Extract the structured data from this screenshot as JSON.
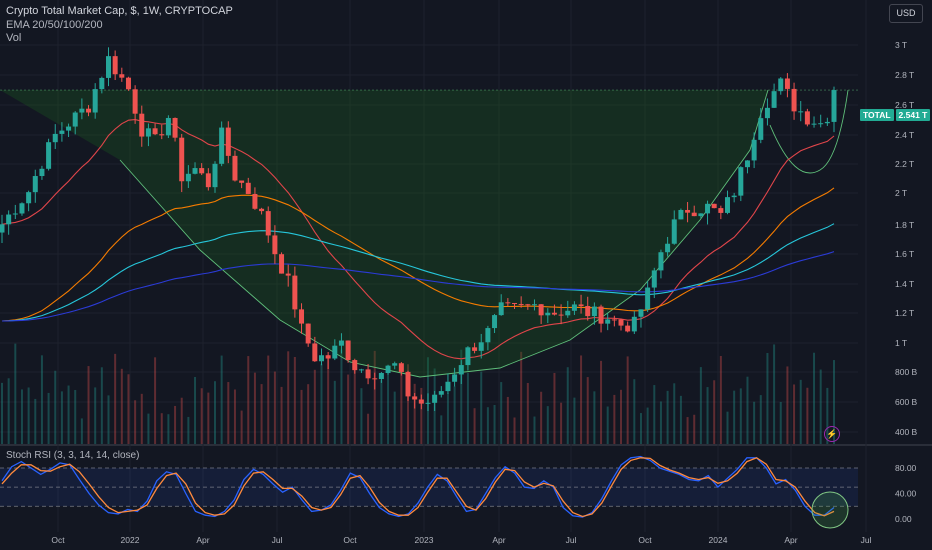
{
  "header": {
    "title": "Crypto Total Market Cap, $, 1W, CRYPTOCAP",
    "indicator": "EMA 20/50/100/200",
    "volume_label": "Vol",
    "currency": "USD"
  },
  "price_tag": {
    "symbol": "TOTAL",
    "value": "2.541 T"
  },
  "oscillator": {
    "label": "Stoch RSI (3, 3, 14, 14, close)"
  },
  "colors": {
    "up": "#26a69a",
    "down": "#ef5350",
    "ema20": "#e0454a",
    "ema50": "#f57c00",
    "ema100": "#26c6da",
    "ema200": "#2b3bd6",
    "cup": "#5fbf7a",
    "k": "#2962ff",
    "d": "#ff8a3d",
    "background": "#131722"
  },
  "chart_data": [
    {
      "type": "candlestick",
      "title": "Crypto Total Market Cap, $, 1W, CRYPTOCAP",
      "y_scale": "log",
      "y_ticks": [
        "3 T",
        "2.8 T",
        "2.6 T",
        "2.4 T",
        "2.2 T",
        "2 T",
        "1.8 T",
        "1.6 T",
        "1.4 T",
        "1.2 T",
        "1 T",
        "800 B",
        "600 B",
        "400 B"
      ],
      "x_ticks": [
        "Oct",
        "2022",
        "Apr",
        "Jul",
        "Oct",
        "2023",
        "Apr",
        "Jul",
        "Oct",
        "2024",
        "Apr",
        "Jul"
      ],
      "last_value": "2.541 T",
      "close_path_trillions": [
        [
          0,
          1.55
        ],
        [
          4,
          1.75
        ],
        [
          8,
          2.15
        ],
        [
          13,
          2.4
        ],
        [
          16,
          2.85
        ],
        [
          19,
          2.55
        ],
        [
          21,
          2.2
        ],
        [
          23,
          2.1
        ],
        [
          25,
          2.3
        ],
        [
          27,
          1.85
        ],
        [
          29,
          1.9
        ],
        [
          31,
          1.8
        ],
        [
          33,
          2.15
        ],
        [
          35,
          1.85
        ],
        [
          37,
          1.75
        ],
        [
          39,
          1.6
        ],
        [
          41,
          1.4
        ],
        [
          43,
          1.25
        ],
        [
          45,
          1.05
        ],
        [
          47,
          0.95
        ],
        [
          49,
          0.95
        ],
        [
          51,
          1.0
        ],
        [
          53,
          0.92
        ],
        [
          55,
          0.9
        ],
        [
          57,
          0.9
        ],
        [
          59,
          0.92
        ],
        [
          61,
          0.83
        ],
        [
          63,
          0.8
        ],
        [
          65,
          0.81
        ],
        [
          67,
          0.87
        ],
        [
          70,
          0.97
        ],
        [
          73,
          1.04
        ],
        [
          75,
          1.13
        ],
        [
          77,
          1.13
        ],
        [
          80,
          1.15
        ],
        [
          83,
          1.12
        ],
        [
          86,
          1.14
        ],
        [
          88,
          1.12
        ],
        [
          91,
          1.1
        ],
        [
          93,
          1.07
        ],
        [
          95,
          1.07
        ],
        [
          97,
          1.2
        ],
        [
          99,
          1.4
        ],
        [
          101,
          1.55
        ],
        [
          103,
          1.64
        ],
        [
          106,
          1.65
        ],
        [
          108,
          1.6
        ],
        [
          110,
          1.75
        ],
        [
          112,
          2.0
        ],
        [
          114,
          2.35
        ],
        [
          115,
          2.45
        ],
        [
          117,
          2.6
        ],
        [
          119,
          2.4
        ],
        [
          121,
          2.3
        ],
        [
          123,
          2.25
        ],
        [
          124,
          2.32
        ],
        [
          125,
          2.541
        ]
      ],
      "ema_series": [
        "EMA 20",
        "EMA 50",
        "EMA 100",
        "EMA 200"
      ]
    },
    {
      "type": "line",
      "title": "Stoch RSI (3, 3, 14, 14, close)",
      "y_ticks": [
        "80.00",
        "40.00",
        "0.00"
      ],
      "ylim": [
        0,
        100
      ],
      "series": [
        {
          "name": "K",
          "values": [
            60,
            82,
            90,
            80,
            70,
            78,
            88,
            85,
            62,
            40,
            22,
            10,
            8,
            15,
            12,
            28,
            60,
            74,
            70,
            40,
            12,
            6,
            4,
            12,
            30,
            62,
            78,
            70,
            55,
            42,
            50,
            30,
            12,
            14,
            22,
            45,
            72,
            65,
            40,
            18,
            8,
            4,
            8,
            25,
            50,
            70,
            60,
            35,
            12,
            15,
            40,
            65,
            82,
            72,
            50,
            48,
            60,
            50,
            18,
            5,
            3,
            10,
            32,
            60,
            85,
            96,
            98,
            92,
            80,
            75,
            70,
            62,
            60,
            68,
            50,
            64,
            78,
            96,
            96,
            80,
            55,
            62,
            45,
            20,
            6,
            6,
            18
          ]
        },
        {
          "name": "D",
          "values": [
            55,
            72,
            85,
            85,
            76,
            75,
            82,
            86,
            74,
            55,
            35,
            18,
            10,
            12,
            14,
            22,
            48,
            68,
            72,
            55,
            25,
            10,
            6,
            8,
            22,
            52,
            72,
            74,
            62,
            48,
            48,
            36,
            18,
            14,
            18,
            38,
            64,
            68,
            50,
            26,
            12,
            6,
            6,
            18,
            42,
            64,
            64,
            42,
            20,
            14,
            32,
            58,
            78,
            76,
            58,
            50,
            56,
            52,
            28,
            10,
            4,
            8,
            25,
            52,
            78,
            92,
            96,
            95,
            84,
            77,
            72,
            65,
            62,
            65,
            56,
            60,
            72,
            90,
            96,
            86,
            62,
            60,
            50,
            28,
            10,
            5,
            12
          ]
        }
      ]
    }
  ]
}
